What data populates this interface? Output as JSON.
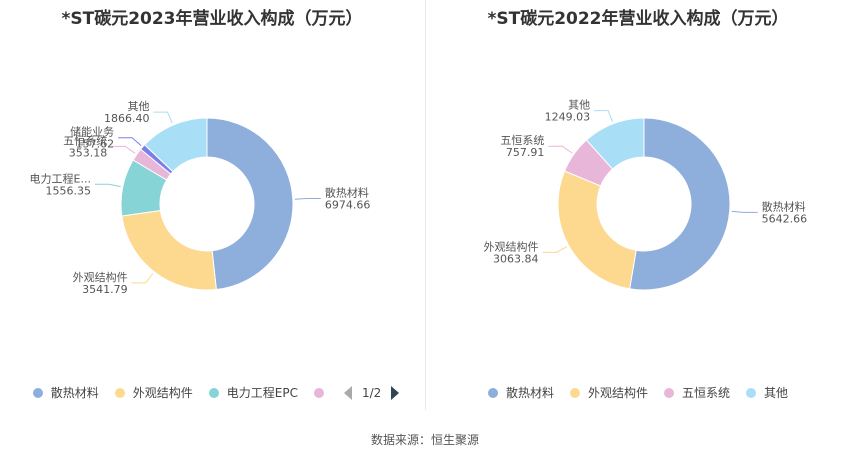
{
  "source_label": "数据来源：恒生聚源",
  "chart_data": [
    {
      "type": "pie",
      "title": "*ST碳元2023年营业收入构成（万元）",
      "series": [
        {
          "name": "散热材料",
          "value": 6974.66,
          "value_label": "6974.66",
          "color": "#8eaedb"
        },
        {
          "name": "外观结构件",
          "value": 3541.79,
          "value_label": "3541.79",
          "color": "#fdd88f"
        },
        {
          "name": "电力工程EPC",
          "value": 1556.35,
          "value_label": "1556.35",
          "label_text": "电力工程E...",
          "color": "#86d4d6"
        },
        {
          "name": "五恒系统",
          "value": 353.18,
          "value_label": "353.18",
          "color": "#e8b6d8"
        },
        {
          "name": "储能业务",
          "value": 157.62,
          "value_label": "157.62",
          "color": "#7b7fe8"
        },
        {
          "name": "其他",
          "value": 1866.4,
          "value_label": "1866.40",
          "color": "#a9def7"
        }
      ],
      "legend": {
        "entries": [
          "散热材料",
          "外观结构件",
          "电力工程EPC",
          ""
        ],
        "colors": [
          "#8eaedb",
          "#fdd88f",
          "#86d4d6",
          "#e8b6d8"
        ],
        "page": "1/2"
      }
    },
    {
      "type": "pie",
      "title": "*ST碳元2022年营业收入构成（万元）",
      "series": [
        {
          "name": "散热材料",
          "value": 5642.66,
          "value_label": "5642.66",
          "color": "#8eaedb"
        },
        {
          "name": "外观结构件",
          "value": 3063.84,
          "value_label": "3063.84",
          "color": "#fdd88f"
        },
        {
          "name": "五恒系统",
          "value": 757.91,
          "value_label": "757.91",
          "color": "#e8b6d8"
        },
        {
          "name": "其他",
          "value": 1249.03,
          "value_label": "1249.03",
          "color": "#a9def7"
        }
      ],
      "legend": {
        "entries": [
          "散热材料",
          "外观结构件",
          "五恒系统",
          "其他"
        ],
        "colors": [
          "#8eaedb",
          "#fdd88f",
          "#e8b6d8",
          "#a9def7"
        ]
      }
    }
  ]
}
